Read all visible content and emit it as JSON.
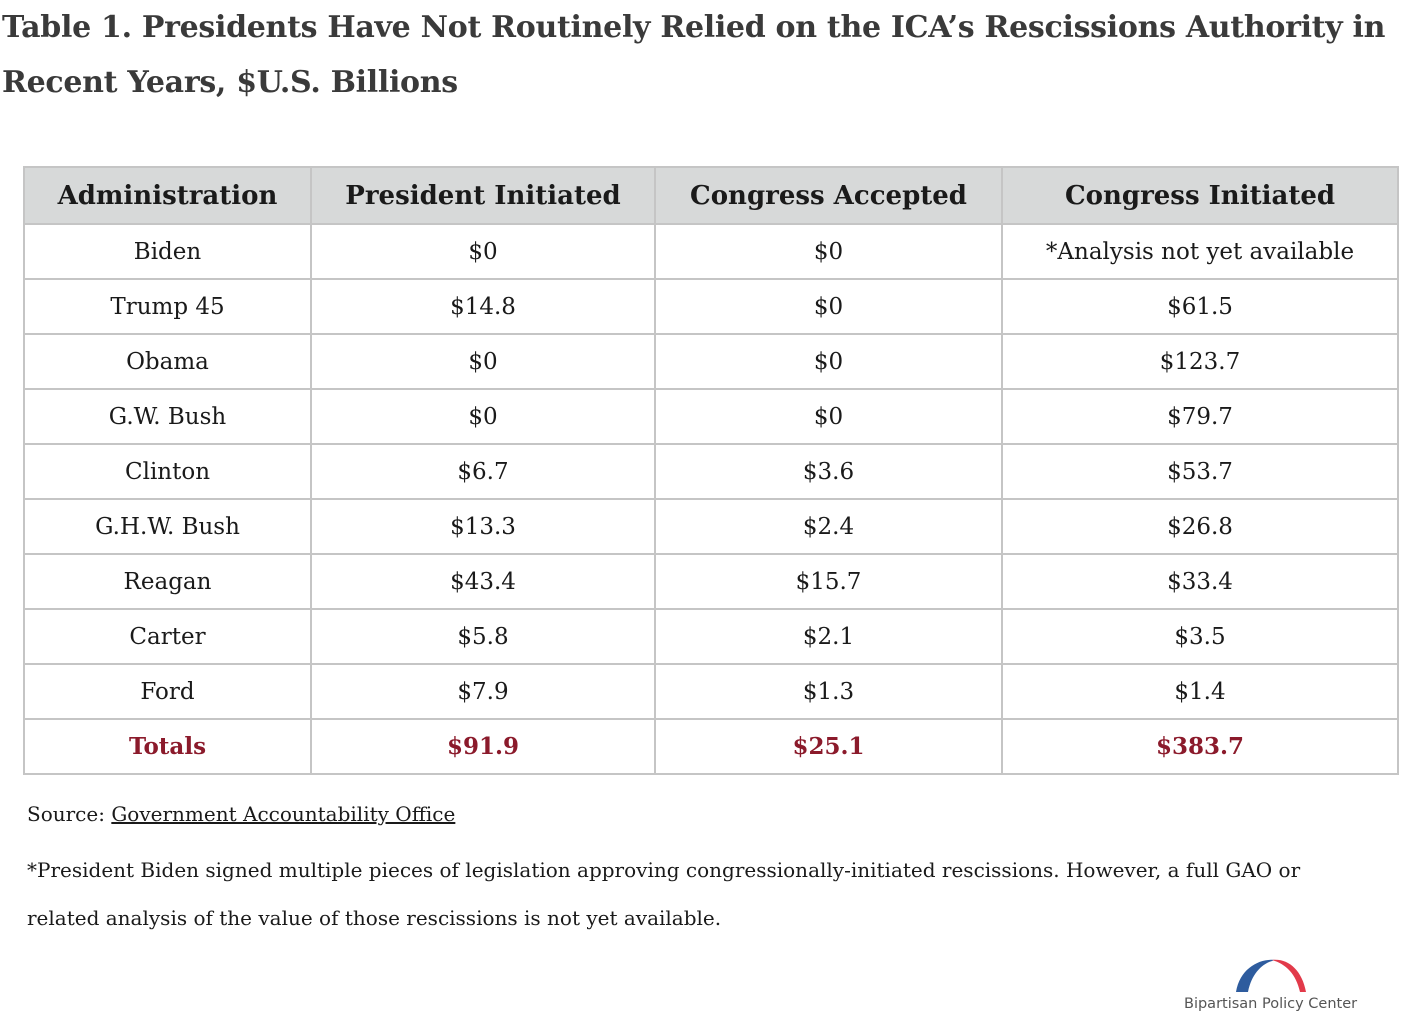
{
  "title": "Table 1. Presidents Have Not Routinely Relied on the ICA’s Rescissions Authority in Recent Years, $U.S. Billions",
  "table": {
    "headers": [
      "Administration",
      "President Initiated",
      "Congress Accepted",
      "Congress Initiated"
    ],
    "rows": [
      [
        "Biden",
        "$0",
        "$0",
        "*Analysis not yet available"
      ],
      [
        "Trump 45",
        "$14.8",
        "$0",
        "$61.5"
      ],
      [
        "Obama",
        "$0",
        "$0",
        "$123.7"
      ],
      [
        "G.W. Bush",
        "$0",
        "$0",
        "$79.7"
      ],
      [
        "Clinton",
        "$6.7",
        "$3.6",
        "$53.7"
      ],
      [
        "G.H.W. Bush",
        "$13.3",
        "$2.4",
        "$26.8"
      ],
      [
        "Reagan",
        "$43.4",
        "$15.7",
        "$33.4"
      ],
      [
        "Carter",
        "$5.8",
        "$2.1",
        "$3.5"
      ],
      [
        "Ford",
        "$7.9",
        "$1.3",
        "$1.4"
      ]
    ],
    "totals": [
      "Totals",
      "$91.9",
      "$25.1",
      "$383.7"
    ]
  },
  "source": {
    "label": "Source:",
    "link_text": "Government Accountability Office"
  },
  "note": "*President Biden signed multiple pieces of legislation approving congressionally-initiated rescissions. However, a full GAO or related analysis of the value of those rescissions is not yet available.",
  "logo": {
    "name": "Bipartisan Policy Center",
    "colors": {
      "blue": "#2e5c9e",
      "red": "#e23a4a"
    }
  },
  "colors": {
    "header_bg": "#d7d9d9",
    "totals_text": "#8b1a2b",
    "title_text": "#3a3a3a",
    "border": "#c5c5c5"
  }
}
